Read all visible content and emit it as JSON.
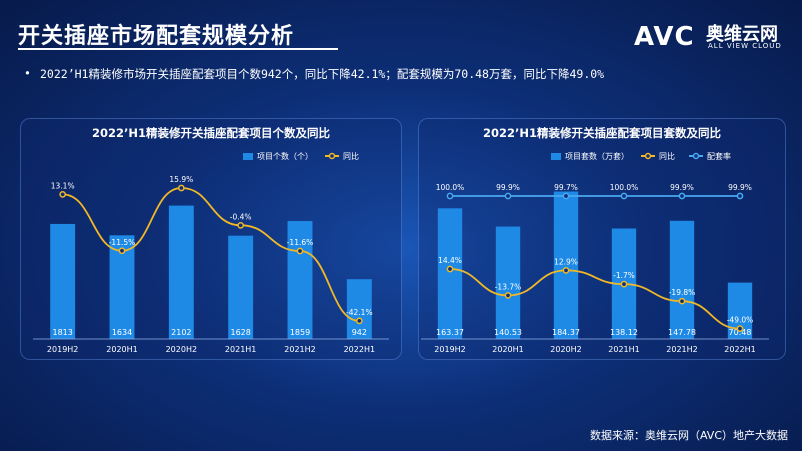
{
  "page": {
    "title": "开关插座市场配套规模分析",
    "summary": "2022’H1精装修市场开关插座配套项目个数942个，同比下降42.1%；配套规模为70.48万套，同比下降49.0%",
    "summary_bullet": "•",
    "footer": "数据来源：奥维云网（AVC）地产大数据",
    "logo": {
      "mark": "AVC",
      "cn": "奥维云网",
      "en": "ALL VIEW CLOUD"
    },
    "colors": {
      "bar": "#1e8ae6",
      "line_yoy": "#f2b826",
      "line_rate": "#4aa8f0"
    }
  },
  "chart_data": [
    {
      "type": "bar",
      "title": "2022’H1精装修开关插座配套项目个数及同比",
      "categories": [
        "2019H2",
        "2020H1",
        "2020H2",
        "2021H1",
        "2021H2",
        "2022H1"
      ],
      "series": [
        {
          "name": "项目个数（个）",
          "kind": "bar",
          "values": [
            1813,
            1634,
            2102,
            1628,
            1859,
            942
          ],
          "labels": [
            "1813",
            "1634",
            "2102",
            "1628",
            "1859",
            "942"
          ]
        },
        {
          "name": "同比",
          "kind": "line",
          "values": [
            13.1,
            -11.5,
            15.9,
            -0.4,
            -11.6,
            -42.1
          ],
          "labels": [
            "13.1%",
            "-11.5%",
            "15.9%",
            "-0.4%",
            "-11.6%",
            "-42.1%"
          ]
        }
      ],
      "bar_ylim": [
        0,
        2600
      ],
      "line_ylim": [
        -50,
        22
      ]
    },
    {
      "type": "bar",
      "title": "2022’H1精装修开关插座配套项目套数及同比",
      "categories": [
        "2019H2",
        "2020H1",
        "2020H2",
        "2021H1",
        "2021H2",
        "2022H1"
      ],
      "series": [
        {
          "name": "项目套数（万套）",
          "kind": "bar",
          "values": [
            163.37,
            140.53,
            184.37,
            138.12,
            147.78,
            70.48
          ],
          "labels": [
            "163.37",
            "140.53",
            "184.37",
            "138.12",
            "147.78",
            "70.48"
          ]
        },
        {
          "name": "同比",
          "kind": "line",
          "values": [
            14.4,
            -13.7,
            12.9,
            -1.7,
            -19.8,
            -49.0
          ],
          "labels": [
            "14.4%",
            "-13.7%",
            "12.9%",
            "-1.7%",
            "-19.8%",
            "-49.0%"
          ]
        },
        {
          "name": "配套率",
          "kind": "line",
          "values": [
            100.0,
            99.9,
            99.7,
            100.0,
            99.9,
            99.9
          ],
          "labels": [
            "100.0%",
            "99.9%",
            "99.7%",
            "100.0%",
            "99.9%",
            "99.9%"
          ]
        }
      ],
      "bar_ylim": [
        0,
        200
      ],
      "line_ylim": [
        -60,
        110
      ]
    }
  ]
}
